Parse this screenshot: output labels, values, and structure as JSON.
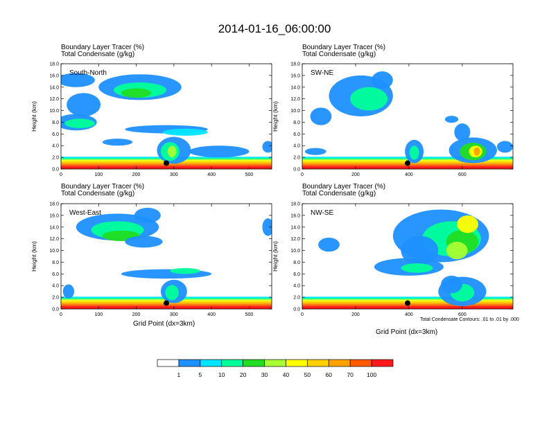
{
  "page_title": "2014-01-16_06:00:00",
  "field_label_1": "Boundary Layer Tracer    (%)",
  "field_label_2": "Total Condensate    (g/kg)",
  "x_axis_title": "Grid Point (dx=3km)",
  "contour_note": "Total Condensate Contours: .01 to .01 by .000",
  "colors": {
    "c1": "#1e90ff",
    "c5": "#00e5ff",
    "c10": "#00ff9a",
    "c20": "#22dd22",
    "c30": "#a8ff33",
    "c40": "#ffff00",
    "c50": "#ffd000",
    "c60": "#ffa200",
    "c70": "#ff5a00",
    "c100": "#ff1a1a",
    "sky": "#6fb8f2"
  },
  "chart_data": [
    {
      "type": "heatmap",
      "name": "South-North",
      "ylabel": "Height (km)",
      "xlabel": "",
      "ylim": [
        0,
        18
      ],
      "xlim": [
        0,
        560
      ],
      "x_ticks": [
        "0",
        "100",
        "200",
        "300",
        "400",
        "500"
      ],
      "y_ticks": [
        "0.0",
        "2.0",
        "4.0",
        "6.0",
        "8.0",
        "10.0",
        "12.0",
        "14.0",
        "16.0",
        "18.0"
      ],
      "marker_x": 280,
      "marker_y": 1.0
    },
    {
      "type": "heatmap",
      "name": "SW-NE",
      "ylabel": "Height (km)",
      "xlabel": "",
      "ylim": [
        0,
        18
      ],
      "xlim": [
        0,
        790
      ],
      "x_ticks": [
        "0",
        "200",
        "400",
        "600"
      ],
      "y_ticks": [
        "0.0",
        "2.0",
        "4.0",
        "6.0",
        "8.0",
        "10.0",
        "12.0",
        "14.0",
        "16.0",
        "18.0"
      ],
      "marker_x": 395,
      "marker_y": 1.0
    },
    {
      "type": "heatmap",
      "name": "West-East",
      "ylabel": "Height (km)",
      "xlabel": "Grid Point (dx=3km)",
      "ylim": [
        0,
        18
      ],
      "xlim": [
        0,
        560
      ],
      "x_ticks": [
        "0",
        "100",
        "200",
        "300",
        "400",
        "500"
      ],
      "y_ticks": [
        "0.0",
        "2.0",
        "4.0",
        "6.0",
        "8.0",
        "10.0",
        "12.0",
        "14.0",
        "16.0",
        "18.0"
      ],
      "marker_x": 280,
      "marker_y": 1.0
    },
    {
      "type": "heatmap",
      "name": "NW-SE",
      "ylabel": "Height (km)",
      "xlabel": "Grid Point (dx=3km)",
      "ylim": [
        0,
        18
      ],
      "xlim": [
        0,
        790
      ],
      "x_ticks": [
        "0",
        "200",
        "400",
        "600"
      ],
      "y_ticks": [
        "0.0",
        "2.0",
        "4.0",
        "6.0",
        "8.0",
        "10.0",
        "12.0",
        "14.0",
        "16.0",
        "18.0"
      ],
      "marker_x": 395,
      "marker_y": 1.0
    }
  ],
  "colorbar": {
    "levels": [
      "1",
      "5",
      "10",
      "20",
      "30",
      "40",
      "50",
      "60",
      "70",
      "100"
    ],
    "colors": [
      "#ffffff",
      "#1e90ff",
      "#00e5ff",
      "#00ff9a",
      "#22dd22",
      "#a8ff33",
      "#ffff00",
      "#ffd000",
      "#ffa200",
      "#ff5a00",
      "#ff1a1a"
    ]
  }
}
